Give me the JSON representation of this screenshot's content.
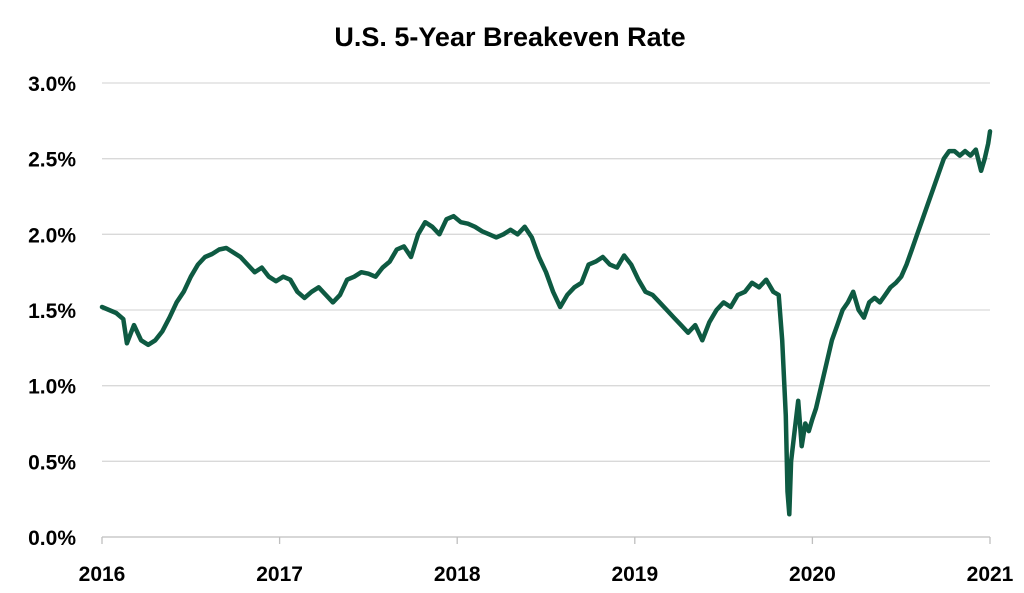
{
  "chart_data": {
    "type": "line",
    "title": "U.S. 5-Year Breakeven Rate",
    "xlabel": "",
    "ylabel": "",
    "x_ticks": [
      "2016",
      "2017",
      "2018",
      "2019",
      "2020",
      "2021"
    ],
    "y_ticks": [
      "0.0%",
      "0.5%",
      "1.0%",
      "1.5%",
      "2.0%",
      "2.5%",
      "3.0%"
    ],
    "xlim": [
      2016,
      2021
    ],
    "ylim": [
      0,
      3.0
    ],
    "y_unit": "%",
    "grid": true,
    "legend": "none",
    "colors": {
      "line": "#0e5a42"
    },
    "series": [
      {
        "x": [
          2016.0,
          2016.04,
          2016.08,
          2016.12,
          2016.14,
          2016.18,
          2016.22,
          2016.26,
          2016.3,
          2016.34,
          2016.38,
          2016.42,
          2016.46,
          2016.5,
          2016.54,
          2016.58,
          2016.62,
          2016.66,
          2016.7,
          2016.74,
          2016.78,
          2016.82,
          2016.86,
          2016.9,
          2016.94,
          2016.98,
          2017.02,
          2017.06,
          2017.1,
          2017.14,
          2017.18,
          2017.22,
          2017.26,
          2017.3,
          2017.34,
          2017.38,
          2017.42,
          2017.46,
          2017.5,
          2017.54,
          2017.58,
          2017.62,
          2017.66,
          2017.7,
          2017.74,
          2017.78,
          2017.82,
          2017.86,
          2017.9,
          2017.94,
          2017.98,
          2018.02,
          2018.06,
          2018.1,
          2018.14,
          2018.18,
          2018.22,
          2018.26,
          2018.3,
          2018.34,
          2018.38,
          2018.42,
          2018.46,
          2018.5,
          2018.54,
          2018.58,
          2018.62,
          2018.66,
          2018.7,
          2018.74,
          2018.78,
          2018.82,
          2018.86,
          2018.9,
          2018.94,
          2018.98,
          2019.02,
          2019.06,
          2019.1,
          2019.14,
          2019.18,
          2019.22,
          2019.26,
          2019.3,
          2019.34,
          2019.38,
          2019.42,
          2019.46,
          2019.5,
          2019.54,
          2019.58,
          2019.62,
          2019.66,
          2019.7,
          2019.74,
          2019.78,
          2019.81,
          2019.83,
          2019.85,
          2019.86,
          2019.87,
          2019.88,
          2019.9,
          2019.92,
          2019.94,
          2019.96,
          2019.98,
          2020.0,
          2020.02,
          2020.05,
          2020.08,
          2020.11,
          2020.14,
          2020.17,
          2020.2,
          2020.23,
          2020.26,
          2020.29,
          2020.32,
          2020.35,
          2020.38,
          2020.41,
          2020.44,
          2020.47,
          2020.5,
          2020.53,
          2020.56,
          2020.59,
          2020.62,
          2020.65,
          2020.68,
          2020.71,
          2020.74,
          2020.77,
          2020.8,
          2020.83,
          2020.86,
          2020.89,
          2020.92,
          2020.95,
          2020.97,
          2020.99,
          2021.0
        ],
        "y": [
          1.52,
          1.5,
          1.48,
          1.44,
          1.28,
          1.4,
          1.3,
          1.27,
          1.3,
          1.36,
          1.45,
          1.55,
          1.62,
          1.72,
          1.8,
          1.85,
          1.87,
          1.9,
          1.91,
          1.88,
          1.85,
          1.8,
          1.75,
          1.78,
          1.72,
          1.69,
          1.72,
          1.7,
          1.62,
          1.58,
          1.62,
          1.65,
          1.6,
          1.55,
          1.6,
          1.7,
          1.72,
          1.75,
          1.74,
          1.72,
          1.78,
          1.82,
          1.9,
          1.92,
          1.85,
          2.0,
          2.08,
          2.05,
          2.0,
          2.1,
          2.12,
          2.08,
          2.07,
          2.05,
          2.02,
          2.0,
          1.98,
          2.0,
          2.03,
          2.0,
          2.05,
          1.98,
          1.85,
          1.75,
          1.62,
          1.52,
          1.6,
          1.65,
          1.68,
          1.8,
          1.82,
          1.85,
          1.8,
          1.78,
          1.86,
          1.8,
          1.7,
          1.62,
          1.6,
          1.55,
          1.5,
          1.45,
          1.4,
          1.35,
          1.4,
          1.3,
          1.42,
          1.5,
          1.55,
          1.52,
          1.6,
          1.62,
          1.68,
          1.65,
          1.7,
          1.62,
          1.6,
          1.3,
          0.8,
          0.3,
          0.15,
          0.5,
          0.7,
          0.9,
          0.6,
          0.75,
          0.7,
          0.78,
          0.85,
          1.0,
          1.15,
          1.3,
          1.4,
          1.5,
          1.55,
          1.62,
          1.5,
          1.45,
          1.55,
          1.58,
          1.55,
          1.6,
          1.65,
          1.68,
          1.72,
          1.8,
          1.9,
          2.0,
          2.1,
          2.2,
          2.3,
          2.4,
          2.5,
          2.55,
          2.55,
          2.52,
          2.55,
          2.52,
          2.56,
          2.42,
          2.5,
          2.6,
          2.68
        ]
      }
    ]
  }
}
